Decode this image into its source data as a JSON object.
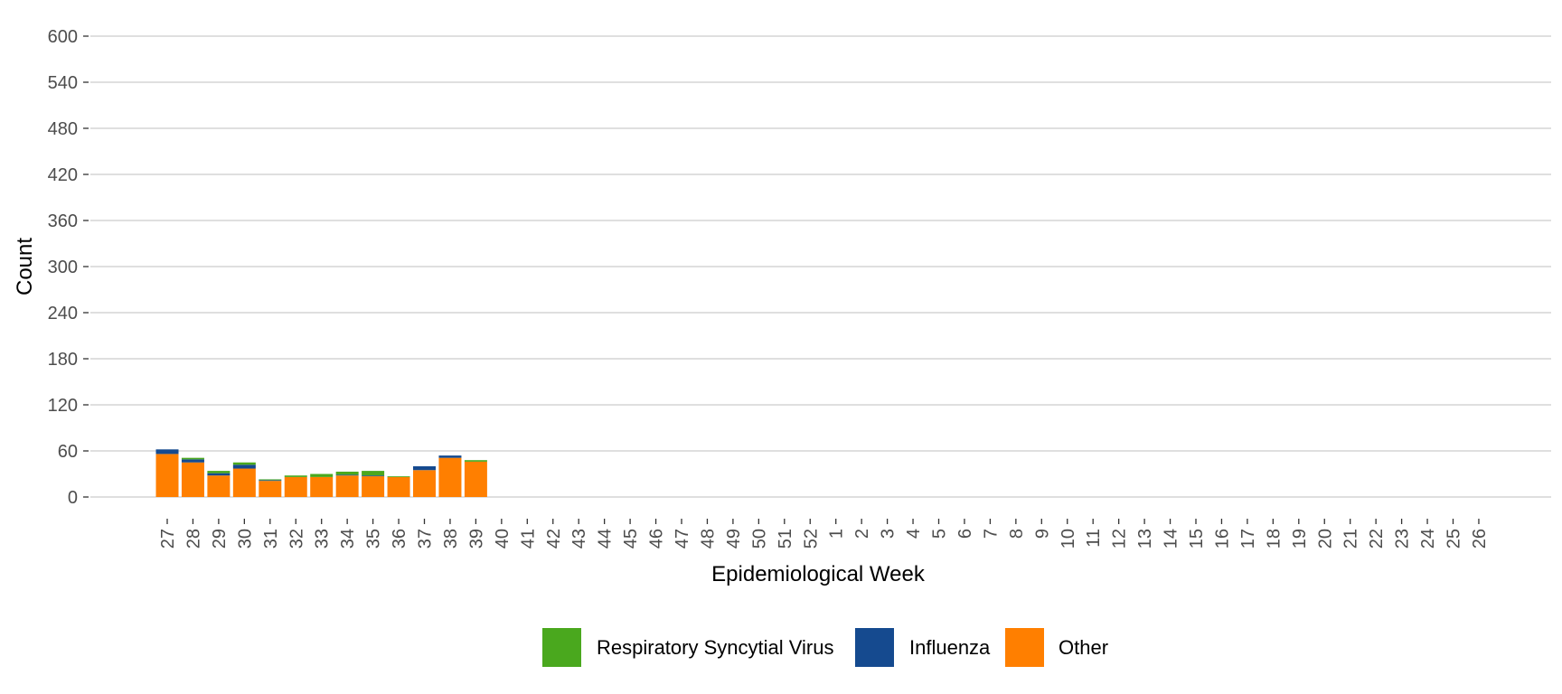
{
  "chart_data": {
    "type": "bar",
    "stacked": true,
    "title": "",
    "xlabel": "Epidemiological Week",
    "ylabel": "Count",
    "ylim": [
      0,
      600
    ],
    "yticks": [
      0,
      60,
      120,
      180,
      240,
      300,
      360,
      420,
      480,
      540,
      600
    ],
    "grid": "horizontal",
    "legend_position": "bottom",
    "categories": [
      "27",
      "28",
      "29",
      "30",
      "31",
      "32",
      "33",
      "34",
      "35",
      "36",
      "37",
      "38",
      "39",
      "40",
      "41",
      "42",
      "43",
      "44",
      "45",
      "46",
      "47",
      "48",
      "49",
      "50",
      "51",
      "52",
      "1",
      "2",
      "3",
      "4",
      "5",
      "6",
      "7",
      "8",
      "9",
      "10",
      "11",
      "12",
      "13",
      "14",
      "15",
      "16",
      "17",
      "18",
      "19",
      "20",
      "21",
      "22",
      "23",
      "24",
      "25",
      "26"
    ],
    "series": [
      {
        "name": "Other",
        "color": "#FF7F00",
        "values": [
          56,
          45,
          28,
          37,
          21,
          26,
          26,
          28,
          27,
          26,
          35,
          51,
          46,
          null,
          null,
          null,
          null,
          null,
          null,
          null,
          null,
          null,
          null,
          null,
          null,
          null,
          null,
          null,
          null,
          null,
          null,
          null,
          null,
          null,
          null,
          null,
          null,
          null,
          null,
          null,
          null,
          null,
          null,
          null,
          null,
          null,
          null,
          null,
          null,
          null,
          null,
          null
        ]
      },
      {
        "name": "Influenza",
        "color": "#154A8F",
        "values": [
          6,
          4,
          3,
          5,
          1,
          0,
          0,
          1,
          1,
          0,
          5,
          3,
          0,
          null,
          null,
          null,
          null,
          null,
          null,
          null,
          null,
          null,
          null,
          null,
          null,
          null,
          null,
          null,
          null,
          null,
          null,
          null,
          null,
          null,
          null,
          null,
          null,
          null,
          null,
          null,
          null,
          null,
          null,
          null,
          null,
          null,
          null,
          null,
          null,
          null,
          null,
          null
        ]
      },
      {
        "name": "Respiratory Syncytial Virus",
        "color": "#4AA81E",
        "values": [
          0,
          2,
          3,
          3,
          1,
          2,
          4,
          4,
          6,
          1,
          0,
          0,
          2,
          null,
          null,
          null,
          null,
          null,
          null,
          null,
          null,
          null,
          null,
          null,
          null,
          null,
          null,
          null,
          null,
          null,
          null,
          null,
          null,
          null,
          null,
          null,
          null,
          null,
          null,
          null,
          null,
          null,
          null,
          null,
          null,
          null,
          null,
          null,
          null,
          null,
          null,
          null
        ]
      }
    ],
    "legend": [
      {
        "name": "Respiratory Syncytial Virus",
        "color": "#4AA81E"
      },
      {
        "name": "Influenza",
        "color": "#154A8F"
      },
      {
        "name": "Other",
        "color": "#FF7F00"
      }
    ]
  }
}
